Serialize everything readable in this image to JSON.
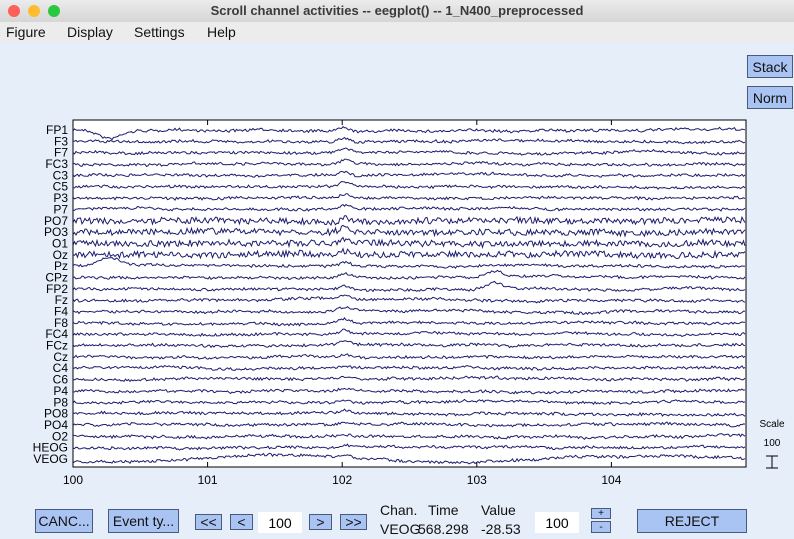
{
  "window": {
    "title": "Scroll channel activities -- eegplot() -- 1_N400_preprocessed"
  },
  "menu": [
    "Figure",
    "Display",
    "Settings",
    "Help"
  ],
  "side_buttons": {
    "stack": "Stack",
    "norm": "Norm"
  },
  "plot": {
    "channels": [
      "FP1",
      "F3",
      "F7",
      "FC3",
      "C3",
      "C5",
      "P3",
      "P7",
      "PO7",
      "PO3",
      "O1",
      "Oz",
      "Pz",
      "CPz",
      "FP2",
      "Fz",
      "F4",
      "F8",
      "FC4",
      "FCz",
      "Cz",
      "C4",
      "C6",
      "P4",
      "P8",
      "PO8",
      "PO4",
      "O2",
      "HEOG",
      "VEOG"
    ],
    "xlim": [
      100,
      105
    ],
    "xticks": [
      100,
      101,
      102,
      103,
      104
    ]
  },
  "scale": {
    "label": "Scale",
    "value": "100"
  },
  "controls": {
    "cancel": "CANC...",
    "events": "Event ty...",
    "nav": [
      "<<",
      "<",
      "100",
      ">",
      ">>"
    ],
    "chan_header": "Chan.",
    "time_header": "Time",
    "value_header": "Value",
    "chan": "VEOG",
    "time": "568.298",
    "value": "-28.53",
    "scale_input": "100",
    "plus": "+",
    "minus": "-",
    "reject": "REJECT"
  }
}
